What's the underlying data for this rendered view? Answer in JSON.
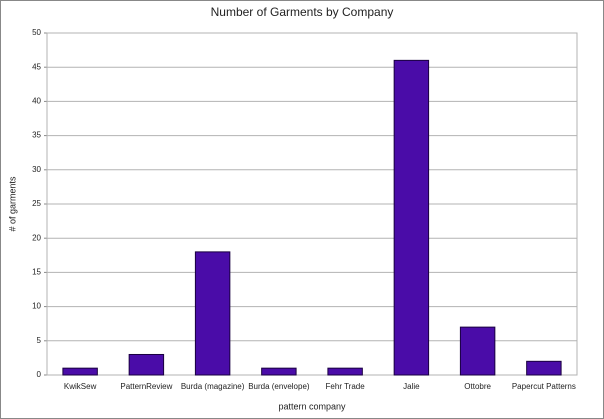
{
  "chart_data": {
    "type": "bar",
    "title": "Number of Garments by Company",
    "x_label": "pattern company",
    "y_label": "# of garments",
    "categories": [
      "KwikSew",
      "PatternReview",
      "Burda (magazine)",
      "Burda (envelope)",
      "Fehr Trade",
      "Jalie",
      "Ottobre",
      "Papercut Patterns"
    ],
    "values": [
      1,
      3,
      18,
      1,
      1,
      46,
      7,
      2
    ],
    "color": "#4a0ca8",
    "ylim": [
      0,
      50
    ],
    "yticks": [
      0,
      5,
      10,
      15,
      20,
      25,
      30,
      35,
      40,
      45,
      50
    ],
    "grid": true
  }
}
